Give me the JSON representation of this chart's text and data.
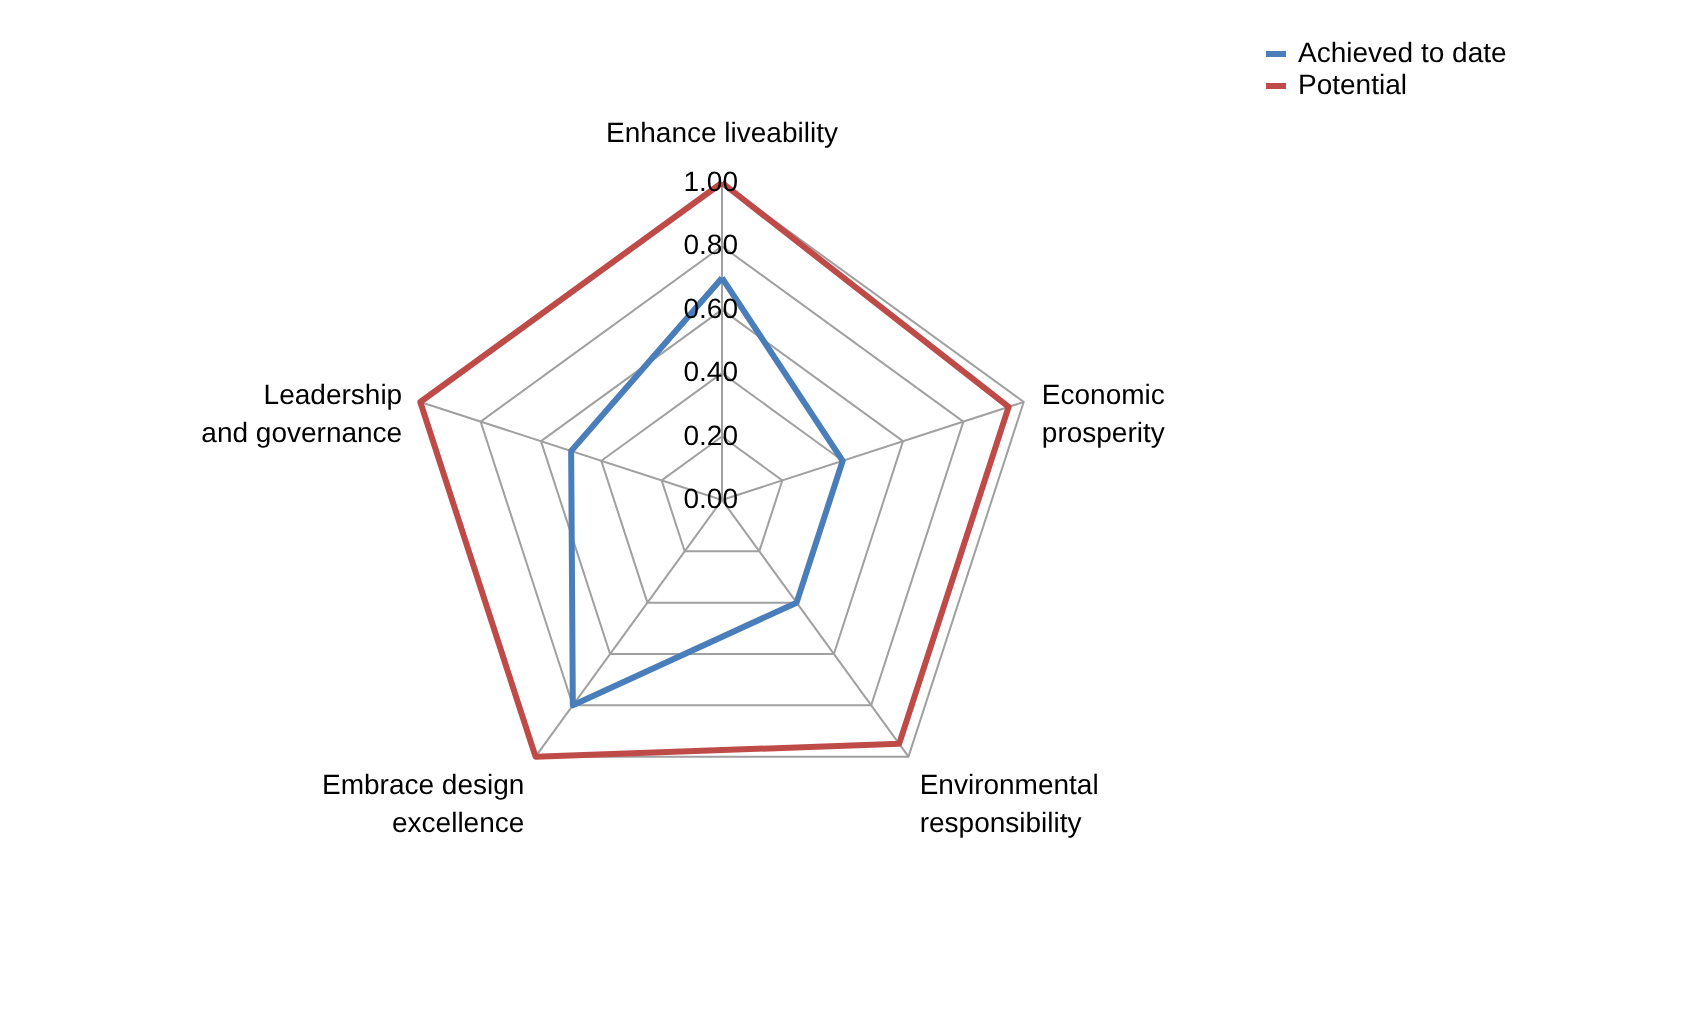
{
  "chart_data": {
    "type": "radar",
    "categories": [
      "Enhance liveability",
      "Economic prosperity",
      "Environmental responsibility",
      "Embrace design excellence",
      "Leadership and governance"
    ],
    "series": [
      {
        "name": "Achieved to date",
        "color": "#4a7ebb",
        "values": [
          0.7,
          0.4,
          0.4,
          0.8,
          0.5
        ]
      },
      {
        "name": "Potential",
        "color": "#be4b48",
        "values": [
          1,
          0.95,
          0.95,
          1,
          1
        ]
      }
    ],
    "ylim": [
      0,
      1
    ],
    "yticks": [
      {
        "value": 0,
        "label": "0.00"
      },
      {
        "value": 0.2,
        "label": "0.20"
      },
      {
        "value": 0.4,
        "label": "0.40"
      },
      {
        "value": 0.6,
        "label": "0.60"
      },
      {
        "value": 0.8,
        "label": "0.80"
      },
      {
        "value": 1,
        "label": "1.00"
      }
    ],
    "grid": true,
    "legend": "right"
  }
}
